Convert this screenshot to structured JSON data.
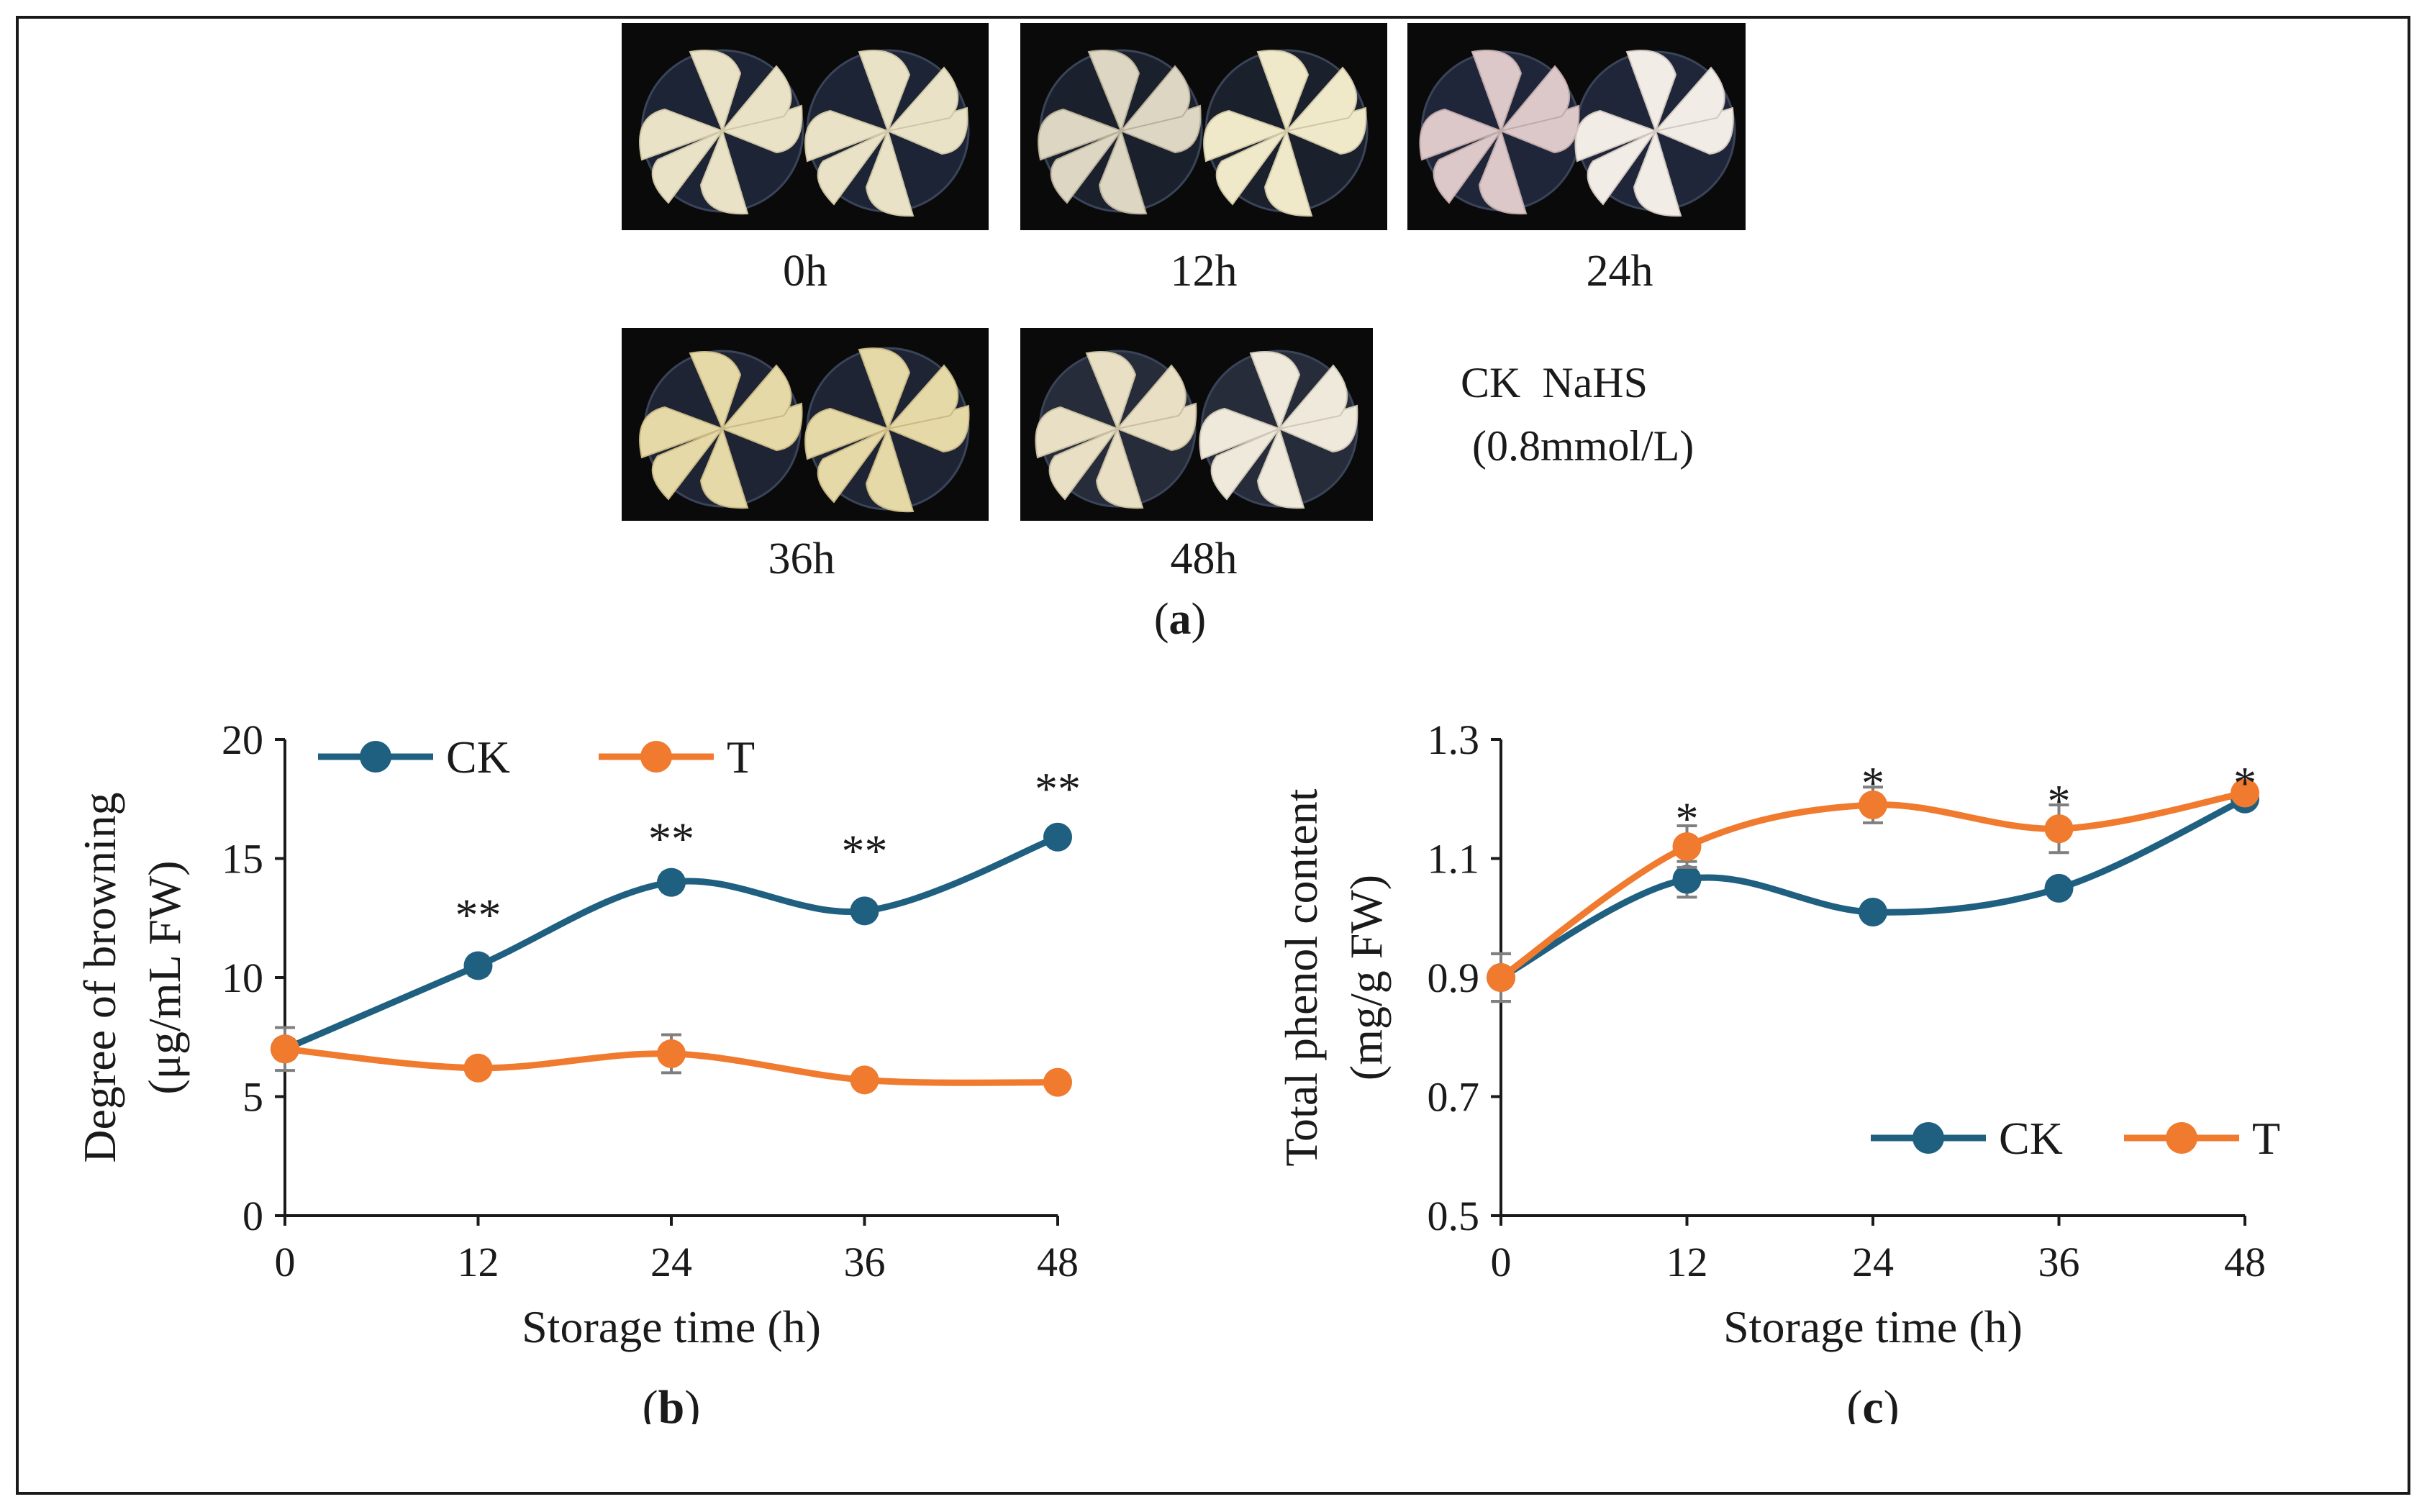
{
  "panel_a": {
    "label_prefix": "(",
    "label_letter": "a",
    "label_suffix": ")",
    "photos": [
      {
        "label": "0h"
      },
      {
        "label": "12h"
      },
      {
        "label": "24h"
      },
      {
        "label": "36h"
      },
      {
        "label": "48h"
      }
    ],
    "legend_line1": "CK  NaHS",
    "legend_line2": "(0.8mmol/L)"
  },
  "colors": {
    "ck": "#1f5f80",
    "t": "#f07a2e",
    "axis": "#1a1a1a",
    "error": "#7f7f7f"
  },
  "chart_data": [
    {
      "id": "b",
      "type": "line",
      "panel_label": "b",
      "x": [
        0,
        12,
        24,
        36,
        48
      ],
      "xticks": [
        "0",
        "12",
        "24",
        "36",
        "48"
      ],
      "xlabel": "Storage time (h)",
      "ylabel_line1": "Degree of browning",
      "ylabel_line2": "(μg/mL FW)",
      "ylim": [
        0,
        20
      ],
      "yticks": [
        "0",
        "5",
        "10",
        "15",
        "20"
      ],
      "ytick_values": [
        0,
        5,
        10,
        15,
        20
      ],
      "legend_position": "top-left",
      "series": [
        {
          "name": "CK",
          "color_key": "ck",
          "values": [
            7.0,
            10.5,
            14.0,
            12.8,
            15.9
          ],
          "errors": [
            0.4,
            0.4,
            0.4,
            0.3,
            0.3
          ]
        },
        {
          "name": "T",
          "color_key": "t",
          "values": [
            7.0,
            6.2,
            6.8,
            5.7,
            5.6
          ],
          "errors": [
            0.9,
            0.3,
            0.8,
            0.3,
            0.2
          ]
        }
      ],
      "annotations": [
        {
          "x": 12,
          "y": 12.7,
          "text": "**"
        },
        {
          "x": 24,
          "y": 15.9,
          "text": "**"
        },
        {
          "x": 36,
          "y": 15.4,
          "text": "**"
        },
        {
          "x": 48,
          "y": 18.0,
          "text": "**"
        }
      ]
    },
    {
      "id": "c",
      "type": "line",
      "panel_label": "c",
      "x": [
        0,
        12,
        24,
        36,
        48
      ],
      "xticks": [
        "0",
        "12",
        "24",
        "36",
        "48"
      ],
      "xlabel": "Storage time (h)",
      "ylabel_line1": "Total phenol content",
      "ylabel_line2": "(mg/g FW)",
      "ylim": [
        0.5,
        1.3
      ],
      "yticks": [
        "0.5",
        "0.7",
        "0.9",
        "1.1",
        "1.3"
      ],
      "ytick_values": [
        0.5,
        0.7,
        0.9,
        1.1,
        1.3
      ],
      "legend_position": "bottom-right",
      "series": [
        {
          "name": "CK",
          "color_key": "ck",
          "values": [
            0.9,
            1.065,
            1.01,
            1.05,
            1.2
          ],
          "errors": [
            0.04,
            0.03,
            0.01,
            0.01,
            0.01
          ]
        },
        {
          "name": "T",
          "color_key": "t",
          "values": [
            0.9,
            1.12,
            1.19,
            1.15,
            1.21
          ],
          "errors": [
            0.04,
            0.035,
            0.03,
            0.04,
            0.01
          ]
        }
      ],
      "annotations": [
        {
          "x": 12,
          "y": 1.17,
          "text": "*"
        },
        {
          "x": 24,
          "y": 1.23,
          "text": "*"
        },
        {
          "x": 36,
          "y": 1.2,
          "text": "*"
        },
        {
          "x": 48,
          "y": 1.23,
          "text": "*"
        }
      ]
    }
  ]
}
